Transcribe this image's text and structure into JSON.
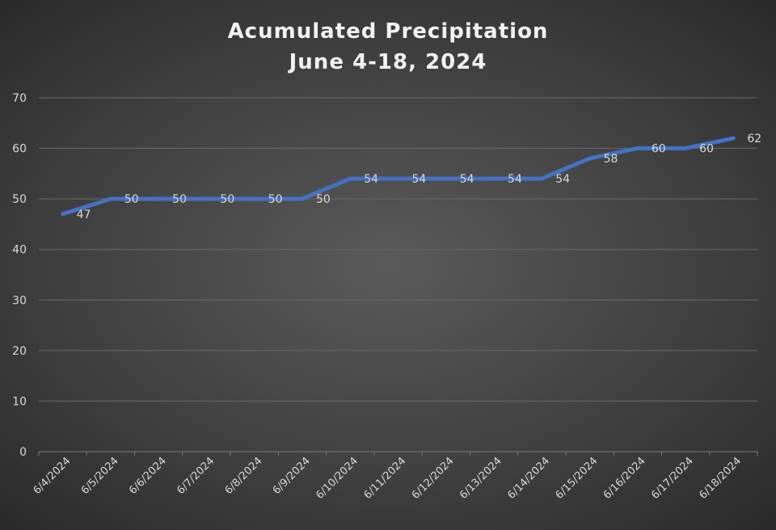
{
  "chart_data": {
    "type": "line",
    "title_lines": [
      "Acumulated Precipitation",
      "June 4-18, 2024"
    ],
    "xlabel": "",
    "ylabel": "",
    "categories": [
      "6/4/2024",
      "6/5/2024",
      "6/6/2024",
      "6/7/2024",
      "6/8/2024",
      "6/9/2024",
      "6/10/2024",
      "6/11/2024",
      "6/12/2024",
      "6/13/2024",
      "6/14/2024",
      "6/15/2024",
      "6/16/2024",
      "6/17/2024",
      "6/18/2024"
    ],
    "series": [
      {
        "values": [
          47,
          50,
          50,
          50,
          50,
          50,
          54,
          54,
          54,
          54,
          54,
          58,
          60,
          60,
          62
        ],
        "color": "#4472c4"
      }
    ],
    "ylim": [
      0,
      70
    ],
    "yticks": [
      0,
      10,
      20,
      30,
      40,
      50,
      60,
      70
    ],
    "grid": true,
    "legend": "none",
    "data_labels": true
  }
}
